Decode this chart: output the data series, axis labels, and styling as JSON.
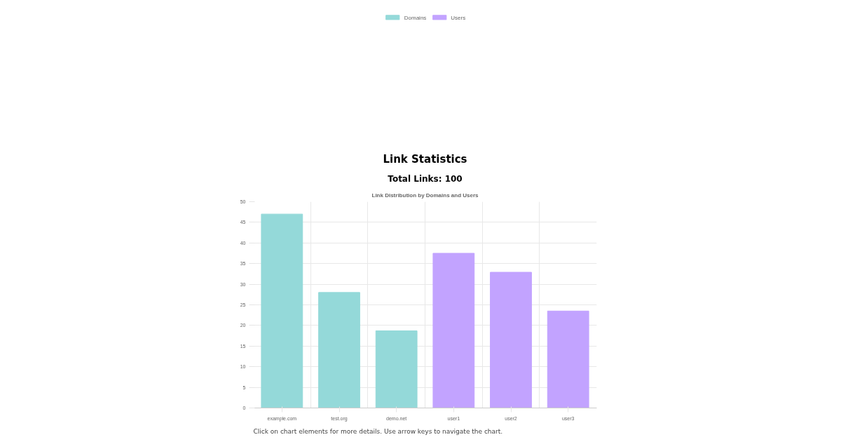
{
  "chart_data": {
    "type": "bar",
    "title": "Link Statistics",
    "subtitle": "Total Links: 100",
    "annotations": [
      "Link Distribution by Domains and Users",
      "Click on chart elements for more details. Use arrow keys to navigate the chart."
    ],
    "categories": [
      "example.com",
      "test.org",
      "demo.net",
      "user1",
      "user2",
      "user3"
    ],
    "series": [
      {
        "name": "Domains",
        "color": "#94d9d9",
        "values": [
          47,
          28,
          18.7,
          null,
          null,
          null
        ]
      },
      {
        "name": "Users",
        "color": "#c2a3ff",
        "values": [
          null,
          null,
          null,
          37.5,
          32.9,
          23.5
        ]
      }
    ],
    "ylim": [
      0,
      50
    ],
    "yticks": [
      0,
      5,
      10,
      15,
      20,
      25,
      30,
      35,
      40,
      45,
      50
    ],
    "grid": true,
    "legend": "top"
  }
}
